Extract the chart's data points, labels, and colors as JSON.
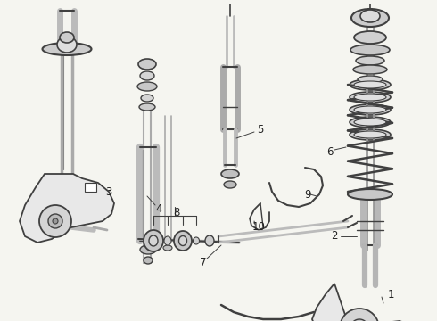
{
  "bg_color": "#f5f5f0",
  "line_color": "#404040",
  "label_color": "#222222",
  "figsize": [
    4.9,
    3.6
  ],
  "dpi": 100
}
